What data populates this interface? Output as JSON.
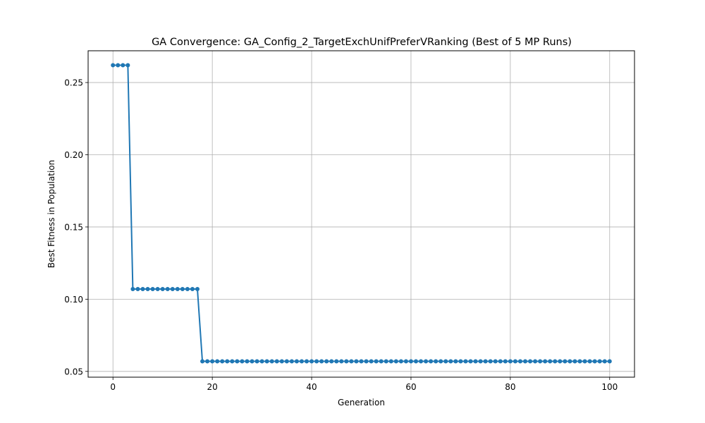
{
  "chart_data": {
    "type": "line",
    "title": "GA Convergence: GA_Config_2_TargetExchUnifPreferVRanking (Best of 5 MP Runs)",
    "xlabel": "Generation",
    "ylabel": "Best Fitness in Population",
    "xlim": [
      -5,
      105
    ],
    "ylim": [
      0.046,
      0.272
    ],
    "x_ticks": [
      0,
      20,
      40,
      60,
      80,
      100
    ],
    "x_tick_labels": [
      "0",
      "20",
      "40",
      "60",
      "80",
      "100"
    ],
    "y_ticks": [
      0.05,
      0.1,
      0.15,
      0.2,
      0.25
    ],
    "y_tick_labels": [
      "0.05",
      "0.10",
      "0.15",
      "0.20",
      "0.25"
    ],
    "grid": true,
    "marker": "circle",
    "series": [
      {
        "color": "#1f77b4",
        "x": [
          0,
          1,
          2,
          3,
          4,
          5,
          6,
          7,
          8,
          9,
          10,
          11,
          12,
          13,
          14,
          15,
          16,
          17,
          18,
          19,
          20,
          21,
          22,
          23,
          24,
          25,
          26,
          27,
          28,
          29,
          30,
          31,
          32,
          33,
          34,
          35,
          36,
          37,
          38,
          39,
          40,
          41,
          42,
          43,
          44,
          45,
          46,
          47,
          48,
          49,
          50,
          51,
          52,
          53,
          54,
          55,
          56,
          57,
          58,
          59,
          60,
          61,
          62,
          63,
          64,
          65,
          66,
          67,
          68,
          69,
          70,
          71,
          72,
          73,
          74,
          75,
          76,
          77,
          78,
          79,
          80,
          81,
          82,
          83,
          84,
          85,
          86,
          87,
          88,
          89,
          90,
          91,
          92,
          93,
          94,
          95,
          96,
          97,
          98,
          99,
          100
        ],
        "y": [
          0.262,
          0.262,
          0.262,
          0.262,
          0.107,
          0.107,
          0.107,
          0.107,
          0.107,
          0.107,
          0.107,
          0.107,
          0.107,
          0.107,
          0.107,
          0.107,
          0.107,
          0.107,
          0.057,
          0.057,
          0.057,
          0.057,
          0.057,
          0.057,
          0.057,
          0.057,
          0.057,
          0.057,
          0.057,
          0.057,
          0.057,
          0.057,
          0.057,
          0.057,
          0.057,
          0.057,
          0.057,
          0.057,
          0.057,
          0.057,
          0.057,
          0.057,
          0.057,
          0.057,
          0.057,
          0.057,
          0.057,
          0.057,
          0.057,
          0.057,
          0.057,
          0.057,
          0.057,
          0.057,
          0.057,
          0.057,
          0.057,
          0.057,
          0.057,
          0.057,
          0.057,
          0.057,
          0.057,
          0.057,
          0.057,
          0.057,
          0.057,
          0.057,
          0.057,
          0.057,
          0.057,
          0.057,
          0.057,
          0.057,
          0.057,
          0.057,
          0.057,
          0.057,
          0.057,
          0.057,
          0.057,
          0.057,
          0.057,
          0.057,
          0.057,
          0.057,
          0.057,
          0.057,
          0.057,
          0.057,
          0.057,
          0.057,
          0.057,
          0.057,
          0.057,
          0.057,
          0.057,
          0.057,
          0.057,
          0.057,
          0.057
        ]
      }
    ]
  },
  "colors": {
    "line": "#1f77b4",
    "grid": "#b0b0b0",
    "axes": "#000000"
  }
}
